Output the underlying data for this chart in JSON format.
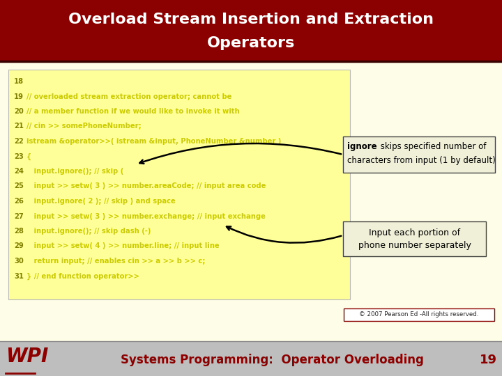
{
  "title_line1": "Overload Stream Insertion and Extraction",
  "title_line2": "Operators",
  "title_bg_color": "#8B0000",
  "title_text_color": "#FFFFFF",
  "slide_bg_color": "#FDFDE8",
  "code_bg_color": "#FFFF99",
  "code_lines": [
    {
      "num": "18",
      "text": "",
      "indent": 0
    },
    {
      "num": "19",
      "text": "// overloaded stream extraction operator; cannot be",
      "indent": 0
    },
    {
      "num": "20",
      "text": "// a member function if we would like to invoke it with",
      "indent": 0
    },
    {
      "num": "21",
      "text": "// cin >> somePhoneNumber;",
      "indent": 0
    },
    {
      "num": "22",
      "text": "istream &operator>>( istream &input, PhoneNumber &number )",
      "indent": 0
    },
    {
      "num": "23",
      "text": "{",
      "indent": 0
    },
    {
      "num": "24",
      "text": "   input.ignore(); // skip (",
      "indent": 0
    },
    {
      "num": "25",
      "text": "   input >> setw( 3 ) >> number.areaCode; // input area code",
      "indent": 0
    },
    {
      "num": "26",
      "text": "   input.ignore( 2 ); // skip ) and space",
      "indent": 0
    },
    {
      "num": "27",
      "text": "   input >> setw( 3 ) >> number.exchange; // input exchange",
      "indent": 0
    },
    {
      "num": "28",
      "text": "   input.ignore(); // skip dash (-)",
      "indent": 0
    },
    {
      "num": "29",
      "text": "   input >> setw( 4 ) >> number.line; // input line",
      "indent": 0
    },
    {
      "num": "30",
      "text": "   return input; // enables cin >> a >> b >> c;",
      "indent": 0
    },
    {
      "num": "31",
      "text": "} // end function operator>>",
      "indent": 0
    }
  ],
  "code_num_color": "#808000",
  "code_text_color": "#CCCC00",
  "footer_text": "Systems Programming:  Operator Overloading",
  "footer_page": "19",
  "footer_bg": "#BEBEBE",
  "footer_text_color": "#8B0000",
  "copyright_text": "© 2007 Pearson Ed -All rights reserved.",
  "wpi_color": "#8B0000"
}
